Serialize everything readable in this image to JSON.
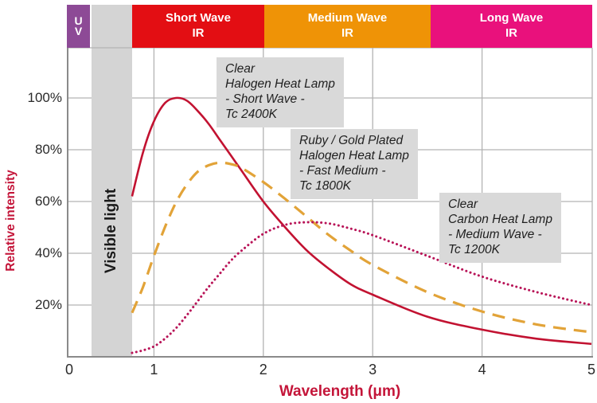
{
  "figure": {
    "y_axis_title": "Relative intensity",
    "x_axis_title": "Wavelength (μm)",
    "visible_light_label": "Visible light",
    "colors": {
      "axis": "#8a8a8a",
      "gridline": "#b3b3b3",
      "visible_band": "#d4d4d4",
      "annotation_box": "#d9d9d9",
      "axis_title_red": "#c41539"
    }
  },
  "spectrum_bands": [
    {
      "id": "uv",
      "lines": [
        "U",
        "V"
      ],
      "color": "#8d4a96",
      "range_um": [
        0.2,
        0.42
      ]
    },
    {
      "id": "short-wave-ir",
      "lines": [
        "Short Wave",
        "IR"
      ],
      "color": "#e30e13",
      "range_um": [
        0.8,
        2.0
      ]
    },
    {
      "id": "medium-wave-ir",
      "lines": [
        "Medium Wave",
        "IR"
      ],
      "color": "#ef9306",
      "range_um": [
        2.0,
        3.5
      ]
    },
    {
      "id": "long-wave-ir",
      "lines": [
        "Long Wave",
        "IR"
      ],
      "color": "#e9117c",
      "range_um": [
        3.5,
        5.0
      ]
    }
  ],
  "annotations": [
    {
      "lines": [
        "Clear",
        "Halogen Heat Lamp",
        "- Short Wave -",
        "Tc 2400K"
      ]
    },
    {
      "lines": [
        "Ruby / Gold Plated",
        "Halogen Heat Lamp",
        "- Fast Medium -",
        "Tc 1800K"
      ]
    },
    {
      "lines": [
        "Clear",
        "Carbon Heat Lamp",
        "- Medium Wave -",
        "Tc 1200K"
      ]
    }
  ],
  "chart_data": {
    "type": "line",
    "xlabel": "Wavelength (μm)",
    "ylabel": "Relative intensity",
    "xlim": [
      0,
      5
    ],
    "ylim_percent": [
      0,
      100
    ],
    "grid": true,
    "legend_position": "inline-annotations",
    "x_ticks": [
      {
        "label": "0",
        "value": 0
      },
      {
        "label": "1",
        "value": 1
      },
      {
        "label": "2",
        "value": 2
      },
      {
        "label": "3",
        "value": 3
      },
      {
        "label": "4",
        "value": 4
      },
      {
        "label": "5",
        "value": 5
      }
    ],
    "y_ticks": [
      {
        "label": "100%",
        "value": 100
      },
      {
        "label": "80%",
        "value": 80
      },
      {
        "label": "60%",
        "value": 60
      },
      {
        "label": "40%",
        "value": 40
      },
      {
        "label": "20%",
        "value": 20
      }
    ],
    "visible_light_band_um": [
      0.42,
      0.8
    ],
    "series": [
      {
        "name": "Clear Halogen Heat Lamp - Short Wave - Tc 2400K",
        "tc_kelvin": 2400,
        "peak_um": 1.2,
        "peak_percent": 100,
        "style": "solid",
        "color": "#c21231",
        "points": [
          [
            0.8,
            62
          ],
          [
            0.9,
            79
          ],
          [
            1.0,
            91
          ],
          [
            1.1,
            98
          ],
          [
            1.2,
            100
          ],
          [
            1.3,
            99
          ],
          [
            1.4,
            95
          ],
          [
            1.5,
            90
          ],
          [
            1.6,
            84
          ],
          [
            1.7,
            78
          ],
          [
            1.8,
            72
          ],
          [
            2.0,
            60
          ],
          [
            2.2,
            50
          ],
          [
            2.4,
            41
          ],
          [
            2.6,
            34
          ],
          [
            2.8,
            28
          ],
          [
            3.0,
            24
          ],
          [
            3.5,
            15.5
          ],
          [
            4.0,
            10.5
          ],
          [
            4.5,
            7
          ],
          [
            5.0,
            5
          ]
        ]
      },
      {
        "name": "Ruby / Gold Plated Halogen Heat Lamp - Fast Medium - Tc 1800K",
        "tc_kelvin": 1800,
        "peak_um": 1.6,
        "peak_percent": 75,
        "style": "dashed",
        "color": "#e2a338",
        "points": [
          [
            0.8,
            17
          ],
          [
            0.9,
            27
          ],
          [
            1.0,
            39
          ],
          [
            1.1,
            50
          ],
          [
            1.2,
            59.5
          ],
          [
            1.3,
            66.5
          ],
          [
            1.4,
            71.5
          ],
          [
            1.5,
            74
          ],
          [
            1.6,
            75
          ],
          [
            1.7,
            74.5
          ],
          [
            1.8,
            73
          ],
          [
            2.0,
            67.5
          ],
          [
            2.2,
            61
          ],
          [
            2.4,
            54
          ],
          [
            2.6,
            47
          ],
          [
            2.8,
            41
          ],
          [
            3.0,
            35.5
          ],
          [
            3.5,
            25
          ],
          [
            4.0,
            17.5
          ],
          [
            4.5,
            12.5
          ],
          [
            5.0,
            9.5
          ]
        ]
      },
      {
        "name": "Clear Carbon Heat Lamp - Medium Wave - Tc 1200K",
        "tc_kelvin": 1200,
        "peak_um": 2.4,
        "peak_percent": 52,
        "style": "dotted",
        "color": "#b81357",
        "points": [
          [
            0.8,
            1.5
          ],
          [
            0.9,
            2.5
          ],
          [
            1.0,
            4
          ],
          [
            1.1,
            7
          ],
          [
            1.2,
            11
          ],
          [
            1.3,
            16
          ],
          [
            1.4,
            21.5
          ],
          [
            1.5,
            27
          ],
          [
            1.6,
            32
          ],
          [
            1.7,
            37
          ],
          [
            1.8,
            41
          ],
          [
            2.0,
            47.5
          ],
          [
            2.2,
            51
          ],
          [
            2.4,
            52
          ],
          [
            2.6,
            51.5
          ],
          [
            2.8,
            49.5
          ],
          [
            3.0,
            47
          ],
          [
            3.5,
            39
          ],
          [
            4.0,
            31
          ],
          [
            4.5,
            25
          ],
          [
            5.0,
            20
          ]
        ]
      }
    ]
  }
}
